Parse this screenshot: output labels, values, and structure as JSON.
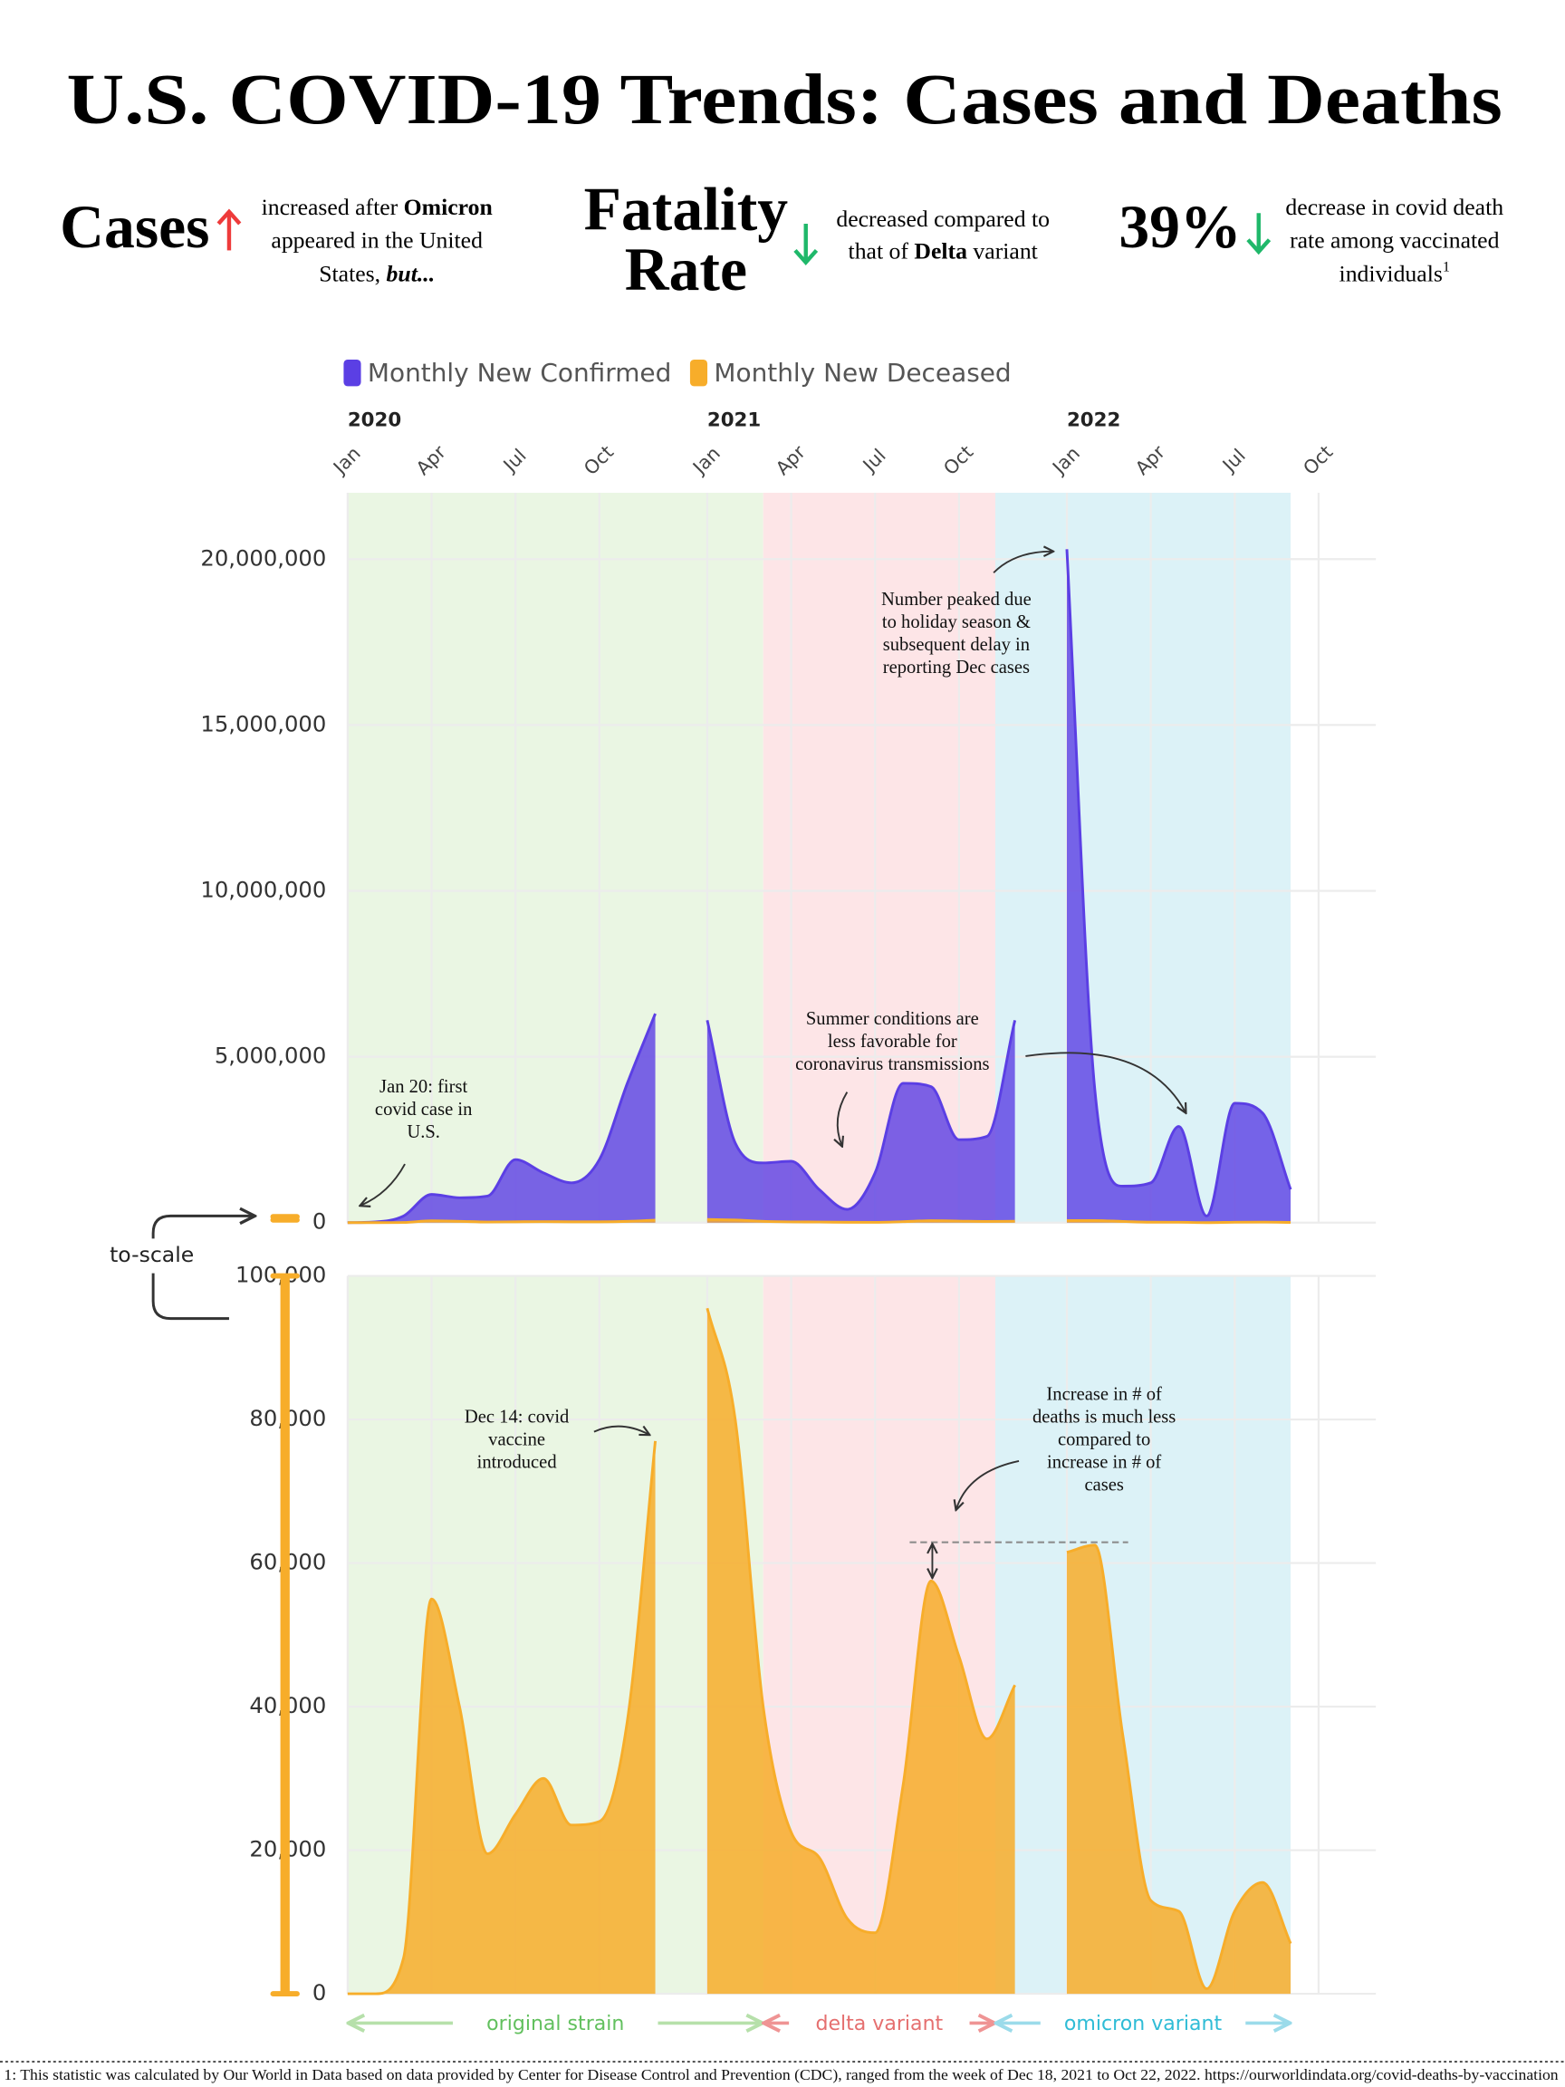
{
  "chart_data": {
    "type": "area",
    "title": "U.S. COVID-19 Trends: Cases and Deaths",
    "highlights": [
      {
        "headline": [
          "Cases"
        ],
        "lines": [
          [
            "increased after ",
            "Omicron"
          ],
          [
            "appeared in the United"
          ],
          [
            "States, ",
            "but..."
          ]
        ]
      },
      {
        "headline": [
          "Fatality",
          "Rate"
        ],
        "lines": [
          [
            "decreased compared to"
          ],
          [
            "that of ",
            "Delta",
            " variant"
          ]
        ]
      },
      {
        "headline": [
          "39%"
        ],
        "lines": [
          [
            "decrease in covid death"
          ],
          [
            "rate among vaccinated"
          ],
          [
            "individuals",
            "1"
          ]
        ]
      }
    ],
    "years": [
      "2020",
      "2021",
      "2022"
    ],
    "categories": [
      "Jan",
      null,
      null,
      "Apr",
      null,
      null,
      "Jul",
      null,
      null,
      "Oct",
      null,
      null,
      "Jan",
      null,
      null,
      "Apr",
      null,
      null,
      "Jul",
      null,
      null,
      "Oct",
      null,
      null,
      "Jan",
      null,
      null,
      "Apr",
      null,
      null,
      "Jul",
      null,
      null,
      "Oct"
    ],
    "series": [
      {
        "name": "Monthly New Confirmed",
        "color": "#5b3fe4",
        "values": [
          0,
          20000,
          200000,
          850000,
          750000,
          800000,
          1900000,
          1500000,
          1200000,
          1900000,
          4200000,
          6300000,
          6100000,
          2400000,
          1800000,
          1850000,
          1000000,
          400000,
          1500000,
          4200000,
          4100000,
          2500000,
          2600000,
          6100000,
          20300000,
          4000000,
          1100000,
          1200000,
          2900000,
          200000,
          3600000,
          3300000,
          1000000,
          null
        ]
      },
      {
        "name": "Monthly New Deceased",
        "color": "#f7ad2a",
        "axis": "y2",
        "values": [
          0,
          0,
          5000,
          55000,
          40000,
          19500,
          25000,
          30000,
          23500,
          24000,
          38000,
          77000,
          95500,
          80000,
          40000,
          22500,
          19000,
          10500,
          8500,
          29000,
          57500,
          47000,
          35500,
          43000,
          61500,
          62500,
          36000,
          13000,
          11500,
          700,
          11500,
          15500,
          7000,
          null
        ]
      }
    ],
    "ylim": [
      0,
      22000000
    ],
    "yticks": [
      0,
      {
        "value": 5000000,
        "label": "5,000,000"
      },
      {
        "value": 10000000,
        "label": "10,000,000"
      },
      {
        "value": 15000000,
        "label": "15,000,000"
      },
      {
        "value": 20000000,
        "label": "20,000,000"
      }
    ],
    "y2lim": [
      0,
      100000
    ],
    "y2ticks": [
      0,
      {
        "value": 20000,
        "label": "20,000"
      },
      {
        "value": 40000,
        "label": "40,000"
      },
      {
        "value": 60000,
        "label": "60,000"
      },
      {
        "value": 80000,
        "label": "80,000"
      },
      {
        "value": 100000,
        "label": "100,000"
      }
    ],
    "grid": true,
    "bands": [
      {
        "label": "original strain",
        "color": "#eaf6e3",
        "label_color": "#62c05e"
      },
      {
        "label": "delta variant",
        "color": "#fde5e7",
        "label_color": "#e56f6f"
      },
      {
        "label": "omicron variant",
        "color": "#dcf2f7",
        "label_color": "#2fbcd6"
      }
    ],
    "annotations": [
      {
        "lines": [
          "Jan 20: first",
          "covid case in",
          "U.S."
        ]
      },
      {
        "lines": [
          "Number peaked due",
          "to holiday season &",
          "subsequent delay in",
          "reporting Dec cases"
        ]
      },
      {
        "lines": [
          "Summer conditions are",
          "less favorable for",
          "coronavirus transmissions"
        ]
      },
      {
        "lines": [
          "Dec 14: covid",
          "vaccine",
          "introduced"
        ]
      },
      {
        "lines": [
          "Increase in # of",
          "deaths is much less",
          "compared to",
          "increase in # of",
          "cases"
        ]
      }
    ],
    "scale_note": "to-scale",
    "footnote": "1: This statistic was calculated by Our World in Data based on data provided by Center for Disease Control and Prevention (CDC), ranged from the week of Dec 18, 2021 to Oct 22, 2022. https://ourworldindata.org/covid-deaths-by-vaccination"
  }
}
